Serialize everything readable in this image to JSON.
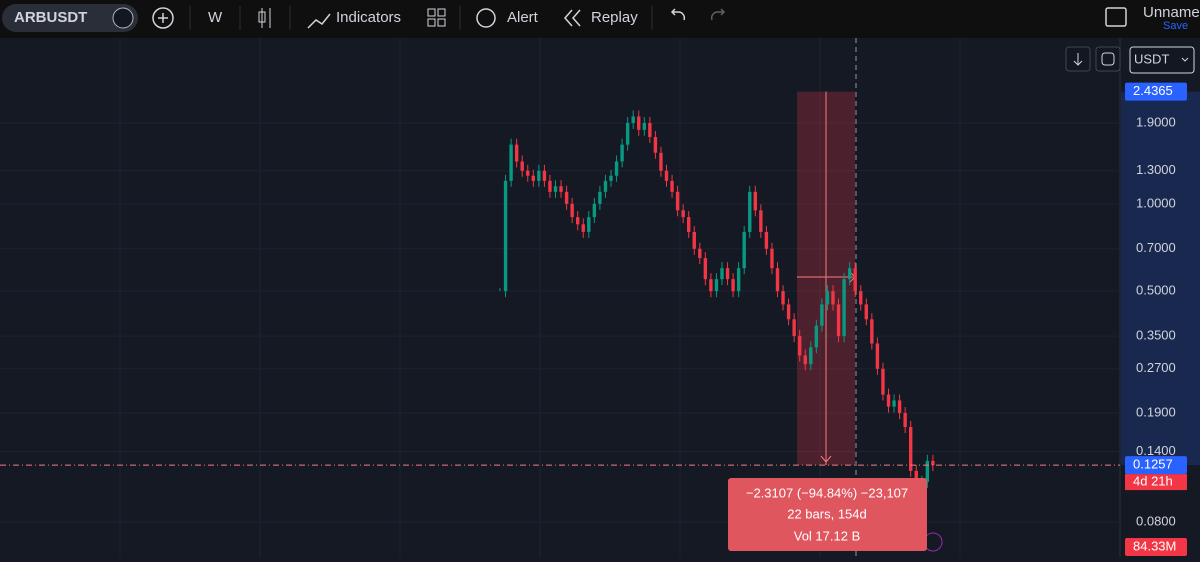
{
  "toolbar": {
    "symbol": "ARBUSDT",
    "interval": "W",
    "indicators": "Indicators",
    "alert": "Alert",
    "replay": "Replay",
    "layout_name": "Unname",
    "save": "Save"
  },
  "chart_data": {
    "type": "candlestick",
    "currency": "USDT",
    "log_scale": true,
    "closes": [
      0.5,
      1.2,
      1.6,
      1.4,
      1.3,
      1.25,
      1.2,
      1.3,
      1.2,
      1.1,
      1.15,
      1.1,
      1.0,
      0.9,
      0.85,
      0.8,
      0.9,
      1.0,
      1.1,
      1.2,
      1.25,
      1.4,
      1.6,
      1.9,
      2.0,
      1.8,
      1.9,
      1.7,
      1.5,
      1.3,
      1.2,
      1.1,
      0.95,
      0.9,
      0.8,
      0.7,
      0.65,
      0.55,
      0.5,
      0.55,
      0.6,
      0.55,
      0.5,
      0.6,
      0.8,
      1.1,
      0.95,
      0.8,
      0.7,
      0.6,
      0.5,
      0.45,
      0.4,
      0.35,
      0.3,
      0.28,
      0.32,
      0.38,
      0.45,
      0.5,
      0.45,
      0.35,
      0.55,
      0.6,
      0.5,
      0.45,
      0.4,
      0.33,
      0.27,
      0.22,
      0.2,
      0.21,
      0.19,
      0.17,
      0.12,
      0.1,
      0.11,
      0.13,
      0.1257
    ],
    "ylim": [
      0.0606,
      3.73
    ],
    "yticks": [
      {
        "value": 1.9,
        "label": "1.9000"
      },
      {
        "value": 1.3,
        "label": "1.3000"
      },
      {
        "value": 1.0,
        "label": "1.0000"
      },
      {
        "value": 0.7,
        "label": "0.7000"
      },
      {
        "value": 0.5,
        "label": "0.5000"
      },
      {
        "value": 0.35,
        "label": "0.3500"
      },
      {
        "value": 0.27,
        "label": "0.2700"
      },
      {
        "value": 0.19,
        "label": "0.1900"
      },
      {
        "value": 0.14,
        "label": "0.1400"
      },
      {
        "value": 0.08,
        "label": "0.0800"
      }
    ],
    "range_high": 2.4365,
    "last_price": 0.1257,
    "countdown": "4d 21h",
    "volume_label": "84.33M",
    "up_color": "#089981",
    "down_color": "#f23645"
  },
  "measure": {
    "change": "−2.3107 (−94.84%) −23,107",
    "bars": "22 bars, 154d",
    "volume": "Vol 17.12 B"
  }
}
